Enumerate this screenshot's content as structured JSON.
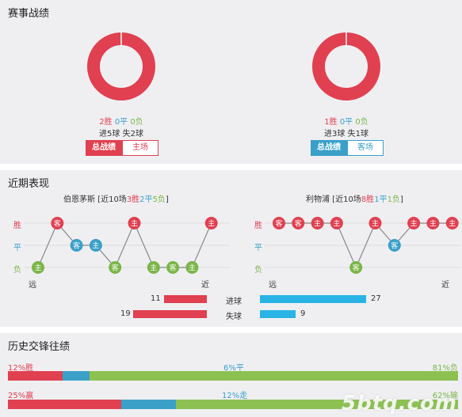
{
  "sections": {
    "record_title": "赛事战绩",
    "recent_title": "近期表现",
    "h2h_title": "历史交锋往绩"
  },
  "colors": {
    "win": "#e04050",
    "draw": "#3aa0c8",
    "loss": "#7ab648"
  },
  "left_team": {
    "donut": {
      "win": 2,
      "draw": 0,
      "loss": 0
    },
    "wins": "2胜",
    "draws": "0平",
    "losses": "0负",
    "goals": "进5球  失2球",
    "tabs": [
      "总战绩",
      "主场"
    ],
    "recent_title_prefix": "伯恩茅斯 [近10场",
    "recent_w": "3胜",
    "recent_d": "2平",
    "recent_l": "5负",
    "recent_title_suffix": "]",
    "recent_results": [
      "L",
      "W",
      "D",
      "D",
      "L",
      "W",
      "L",
      "L",
      "L",
      "W"
    ],
    "recent_venues": [
      "主",
      "客",
      "客",
      "主",
      "客",
      "主",
      "主",
      "客",
      "主",
      "主"
    ]
  },
  "right_team": {
    "donut": {
      "win": 1,
      "draw": 0,
      "loss": 0
    },
    "wins": "1胜",
    "draws": "0平",
    "losses": "0负",
    "goals": "进3球  失1球",
    "tabs": [
      "总战绩",
      "客场"
    ],
    "recent_title_prefix": "利物浦 [近10场",
    "recent_w": "8胜",
    "recent_d": "1平",
    "recent_l": "1负",
    "recent_title_suffix": "]",
    "recent_results": [
      "W",
      "W",
      "W",
      "W",
      "L",
      "W",
      "D",
      "W",
      "W",
      "W"
    ],
    "recent_venues": [
      "客",
      "客",
      "主",
      "主",
      "客",
      "主",
      "客",
      "主",
      "主",
      "主"
    ]
  },
  "axis": {
    "win": "胜",
    "draw": "平",
    "loss": "负",
    "far": "远",
    "near": "近"
  },
  "goals_compare": {
    "scored_label": "进球",
    "conceded_label": "失球",
    "left_scored": 11,
    "left_conceded": 19,
    "right_scored": 27,
    "right_conceded": 9
  },
  "h2h": {
    "row1": {
      "left_label": "12%胜",
      "mid_label": "6%平",
      "right_label": "81%负",
      "win": 12,
      "draw": 6,
      "loss": 81
    },
    "row2": {
      "left_label": "25%赢",
      "mid_label": "12%走",
      "right_label": "62%输",
      "win": 25,
      "draw": 12,
      "loss": 62
    }
  },
  "watermark": "5btq.com"
}
